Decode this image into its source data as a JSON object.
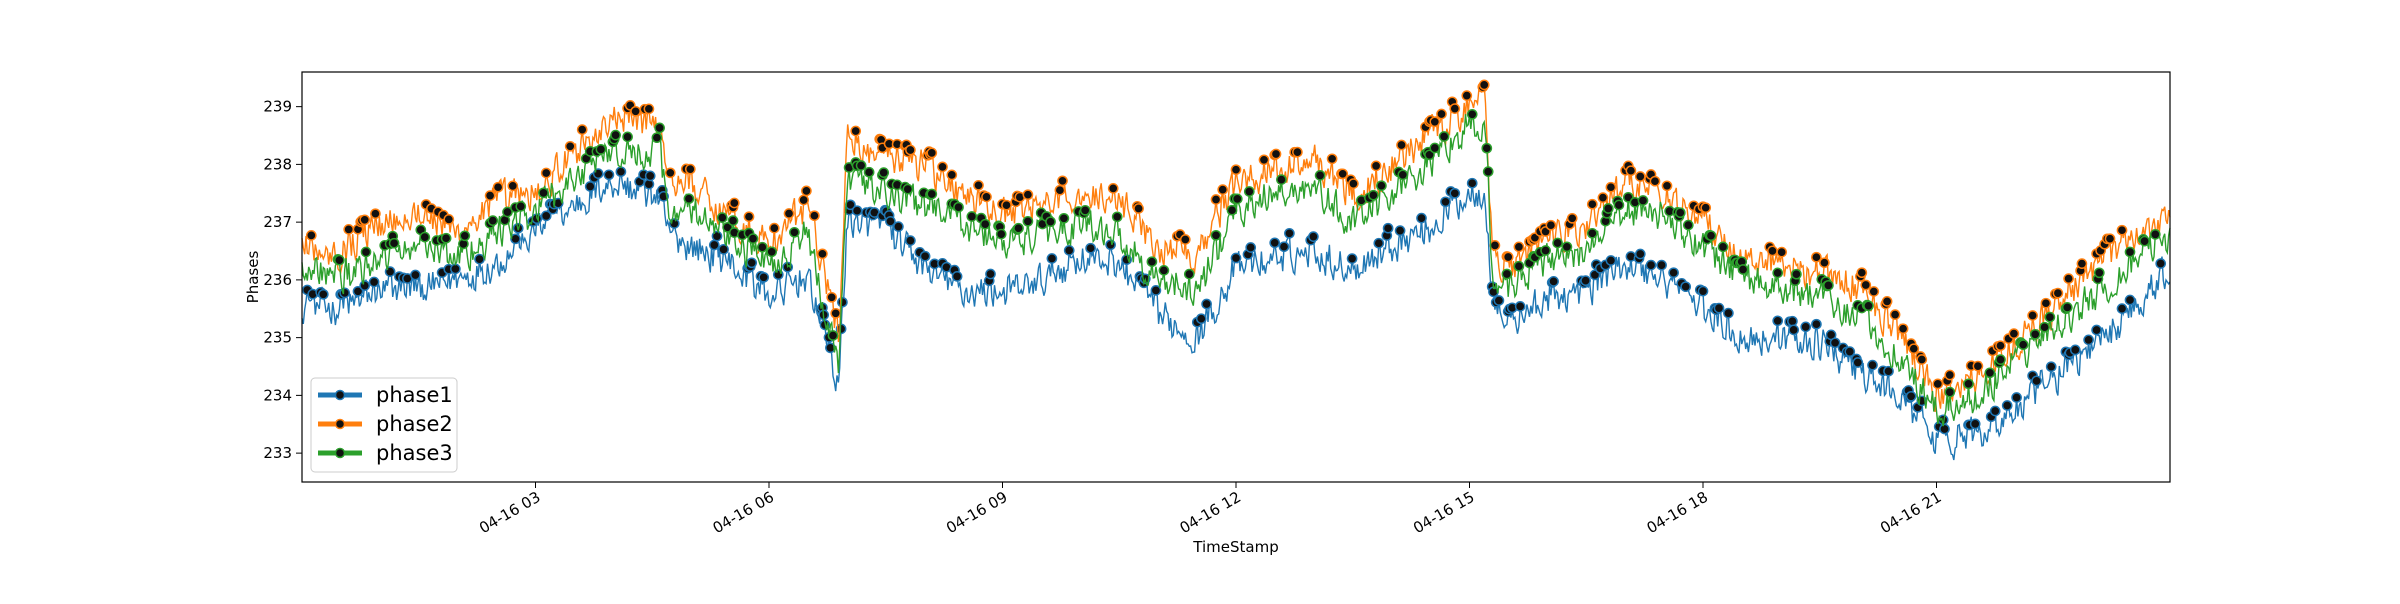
{
  "chart_data": {
    "type": "line",
    "title": "",
    "xlabel": "TimeStamp",
    "ylabel": "Phases",
    "x_range_hours": [
      0.0,
      24.0
    ],
    "ylim": [
      232.5,
      239.6
    ],
    "y_ticks": [
      233,
      234,
      235,
      236,
      237,
      238,
      239
    ],
    "x_ticks": [
      {
        "hour": 3,
        "label": "04-16 03"
      },
      {
        "hour": 6,
        "label": "04-16 06"
      },
      {
        "hour": 9,
        "label": "04-16 09"
      },
      {
        "hour": 12,
        "label": "04-16 12"
      },
      {
        "hour": 15,
        "label": "04-16 15"
      },
      {
        "hour": 18,
        "label": "04-16 18"
      },
      {
        "hour": 21,
        "label": "04-16 21"
      }
    ],
    "legend": {
      "placement": "lower-left",
      "entries": [
        "phase1",
        "phase2",
        "phase3"
      ]
    },
    "grid": false,
    "marker_note": "black circular markers at local peaks",
    "series": [
      {
        "name": "phase1",
        "color": "#1f77b4",
        "x_hours": [
          0.0,
          0.5,
          1.0,
          1.5,
          2.0,
          2.5,
          3.0,
          3.5,
          4.0,
          4.6,
          4.7,
          5.0,
          5.5,
          6.0,
          6.5,
          6.9,
          7.0,
          7.5,
          8.0,
          8.5,
          9.0,
          9.5,
          10.0,
          10.5,
          11.0,
          11.5,
          12.0,
          12.5,
          13.0,
          13.5,
          14.0,
          14.5,
          15.0,
          15.2,
          15.3,
          15.5,
          16.0,
          16.5,
          17.0,
          17.5,
          18.0,
          18.5,
          19.0,
          19.5,
          20.0,
          20.5,
          21.0,
          21.5,
          22.0,
          22.5,
          23.0,
          23.5,
          24.0
        ],
        "values": [
          235.6,
          235.5,
          235.8,
          235.9,
          236.0,
          236.3,
          236.8,
          237.3,
          237.7,
          237.4,
          236.8,
          236.6,
          236.3,
          235.7,
          236.1,
          234.1,
          237.0,
          236.9,
          236.2,
          235.8,
          235.8,
          236.0,
          236.4,
          236.3,
          235.4,
          235.0,
          236.2,
          236.4,
          236.5,
          236.2,
          236.6,
          236.9,
          237.5,
          237.6,
          235.5,
          235.2,
          235.7,
          235.8,
          236.3,
          236.0,
          235.5,
          235.0,
          235.0,
          234.9,
          234.4,
          234.0,
          233.2,
          233.3,
          233.7,
          234.3,
          234.8,
          235.5,
          236.2
        ]
      },
      {
        "name": "phase2",
        "color": "#ff7f0e",
        "x_hours": [
          0.0,
          0.5,
          1.0,
          1.5,
          2.0,
          2.5,
          3.0,
          3.5,
          4.0,
          4.6,
          4.7,
          5.0,
          5.5,
          6.0,
          6.5,
          6.9,
          7.0,
          7.5,
          8.0,
          8.5,
          9.0,
          9.5,
          10.0,
          10.5,
          11.0,
          11.5,
          12.0,
          12.5,
          13.0,
          13.5,
          14.0,
          14.5,
          15.0,
          15.2,
          15.3,
          15.5,
          16.0,
          16.5,
          17.0,
          17.5,
          18.0,
          18.5,
          19.0,
          19.5,
          20.0,
          20.5,
          21.0,
          21.5,
          22.0,
          22.5,
          23.0,
          23.5,
          24.0
        ],
        "values": [
          236.6,
          236.5,
          237.0,
          237.2,
          236.8,
          237.4,
          237.5,
          238.2,
          238.8,
          238.7,
          237.7,
          237.7,
          237.1,
          236.6,
          237.3,
          235.0,
          238.5,
          238.1,
          238.0,
          237.5,
          237.1,
          237.3,
          237.5,
          237.4,
          236.6,
          236.5,
          237.7,
          237.9,
          238.1,
          237.5,
          238.0,
          238.5,
          239.0,
          239.2,
          236.4,
          236.2,
          236.7,
          236.9,
          237.7,
          237.5,
          237.0,
          236.4,
          236.3,
          236.1,
          235.9,
          235.1,
          234.0,
          234.3,
          234.9,
          235.5,
          236.2,
          236.7,
          237.2
        ]
      },
      {
        "name": "phase3",
        "color": "#2ca02c",
        "x_hours": [
          0.0,
          0.5,
          1.0,
          1.5,
          2.0,
          2.5,
          3.0,
          3.5,
          4.0,
          4.6,
          4.7,
          5.0,
          5.5,
          6.0,
          6.5,
          6.9,
          7.0,
          7.5,
          8.0,
          8.5,
          9.0,
          9.5,
          10.0,
          10.5,
          11.0,
          11.5,
          12.0,
          12.5,
          13.0,
          13.5,
          14.0,
          14.5,
          15.0,
          15.2,
          15.3,
          15.5,
          16.0,
          16.5,
          17.0,
          17.5,
          18.0,
          18.5,
          19.0,
          19.5,
          20.0,
          20.5,
          21.0,
          21.5,
          22.0,
          22.5,
          23.0,
          23.5,
          24.0
        ],
        "values": [
          236.3,
          236.0,
          236.4,
          236.6,
          236.4,
          236.8,
          237.2,
          237.8,
          238.2,
          238.3,
          237.2,
          237.2,
          236.7,
          236.3,
          236.8,
          234.4,
          237.8,
          237.5,
          237.3,
          237.0,
          236.6,
          236.8,
          237.0,
          236.8,
          236.0,
          235.8,
          237.2,
          237.5,
          237.6,
          237.0,
          237.5,
          238.0,
          238.7,
          238.6,
          236.0,
          235.9,
          236.3,
          236.5,
          237.2,
          237.1,
          236.6,
          236.0,
          235.9,
          235.7,
          235.4,
          234.7,
          233.7,
          234.0,
          234.6,
          235.1,
          235.7,
          236.3,
          236.8
        ]
      }
    ]
  }
}
